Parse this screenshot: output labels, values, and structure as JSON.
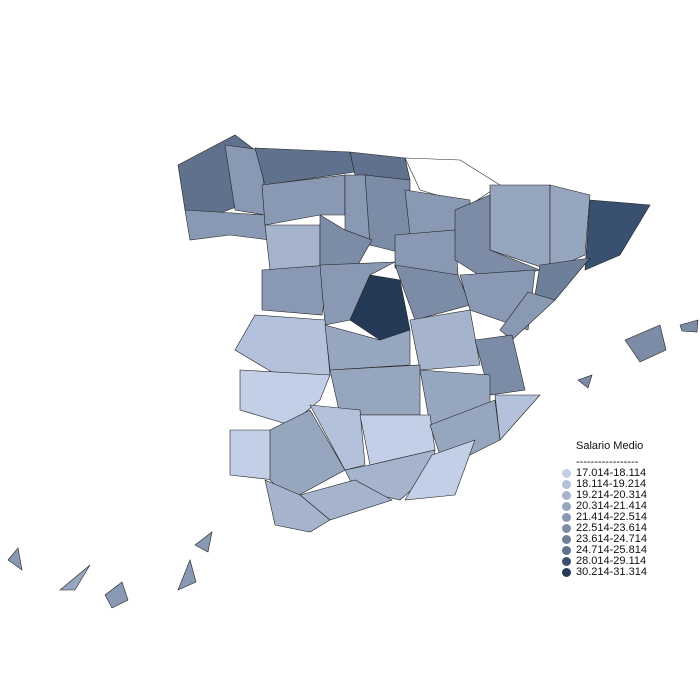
{
  "legend": {
    "title": "Salario Medio",
    "separator": "-----------------",
    "classes": [
      {
        "label": "17.014-18.114",
        "color": "#c2cfe6"
      },
      {
        "label": "18.114-19.214",
        "color": "#b3c1da"
      },
      {
        "label": "19.214-20.314",
        "color": "#a5b3cc"
      },
      {
        "label": "20.314-21.414",
        "color": "#97a6bf"
      },
      {
        "label": "21.414-22.514",
        "color": "#8a99b3"
      },
      {
        "label": "22.514-23.614",
        "color": "#7c8ca7"
      },
      {
        "label": "23.614-24.714",
        "color": "#6e7f9a"
      },
      {
        "label": "24.714-25.814",
        "color": "#5f718d"
      },
      {
        "label": "28.014-29.114",
        "color": "#3a5070"
      },
      {
        "label": "30.214-31.314",
        "color": "#243a57"
      }
    ]
  },
  "map": {
    "no_data_color": "#ffffff",
    "region_classes": [
      7,
      4,
      4,
      7,
      7,
      -1,
      4,
      4,
      5,
      2,
      5,
      4,
      4,
      3,
      3,
      8,
      5,
      6,
      4,
      4,
      9,
      5,
      4,
      4,
      1,
      3,
      2,
      5,
      0,
      3,
      3,
      1,
      0,
      3,
      1,
      0,
      3,
      2,
      0,
      2,
      2,
      5,
      5,
      5,
      4,
      4,
      3,
      4,
      4
    ]
  }
}
